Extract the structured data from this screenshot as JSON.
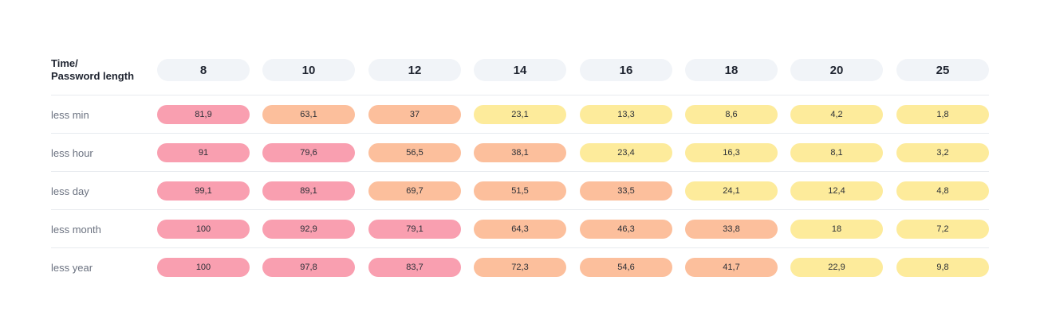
{
  "chart_data": {
    "type": "heatmap",
    "corner_label_line1": "Time/",
    "corner_label_line2": "Password length",
    "columns": [
      "8",
      "10",
      "12",
      "14",
      "16",
      "18",
      "20",
      "25"
    ],
    "rows": [
      {
        "label": "less min",
        "values": [
          "81,9",
          "63,1",
          "37",
          "23,1",
          "13,3",
          "8,6",
          "4,2",
          "1,8"
        ]
      },
      {
        "label": "less hour",
        "values": [
          "91",
          "79,6",
          "56,5",
          "38,1",
          "23,4",
          "16,3",
          "8,1",
          "3,2"
        ]
      },
      {
        "label": "less day",
        "values": [
          "99,1",
          "89,1",
          "69,7",
          "51,5",
          "33,5",
          "24,1",
          "12,4",
          "4,8"
        ]
      },
      {
        "label": "less month",
        "values": [
          "100",
          "92,9",
          "79,1",
          "64,3",
          "46,3",
          "33,8",
          "18",
          "7,2"
        ]
      },
      {
        "label": "less year",
        "values": [
          "100",
          "97,8",
          "83,7",
          "72,3",
          "54,6",
          "41,7",
          "22,9",
          "9,8"
        ]
      }
    ],
    "colors": {
      "high": "#f99fb0",
      "medium": "#fcbf9c",
      "low": "#fdeb9b",
      "header": "#f1f4f8"
    }
  }
}
